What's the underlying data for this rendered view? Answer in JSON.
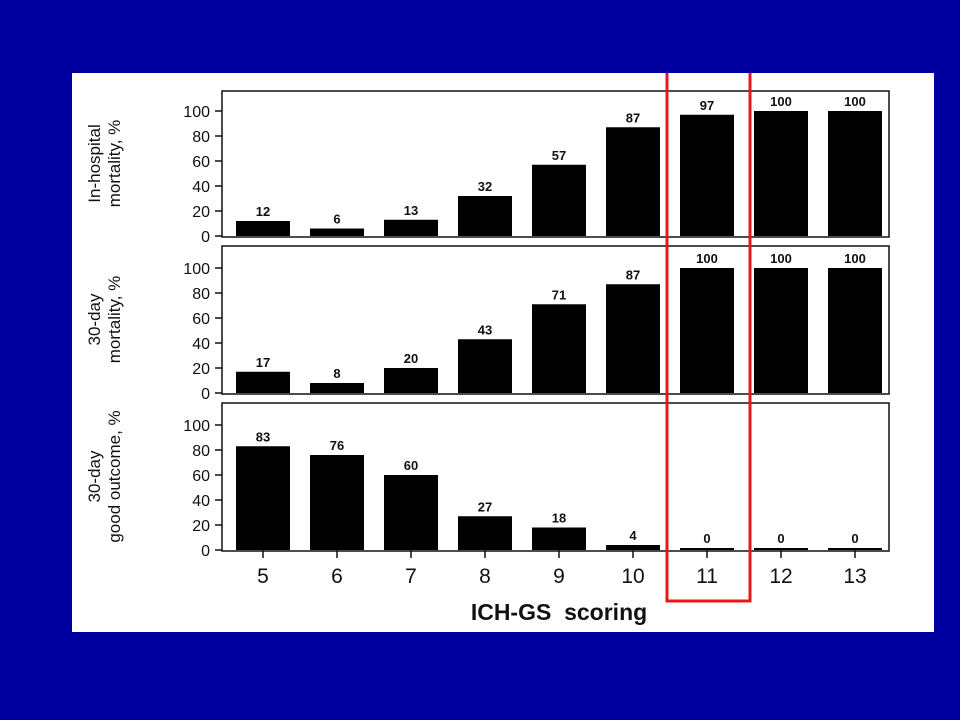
{
  "colors": {
    "background": "#0000a0",
    "figure_background": "#ffffff",
    "bars": "#000000",
    "highlight": "#e81818"
  },
  "chart_data": {
    "type": "bar",
    "categories": [
      "5",
      "6",
      "7",
      "8",
      "9",
      "10",
      "11",
      "12",
      "13"
    ],
    "xlabel": "ICH-GS  scoring",
    "highlighted_category": "11",
    "ylim": [
      0,
      100
    ],
    "yticks": [
      "0",
      "20",
      "40",
      "60",
      "80",
      "100"
    ],
    "panels": [
      {
        "ylabel_lines": [
          "In-hospital",
          "mortality, %"
        ],
        "values": [
          12,
          6,
          13,
          32,
          57,
          87,
          97,
          100,
          100
        ]
      },
      {
        "ylabel_lines": [
          "30-day",
          "mortality, %"
        ],
        "values": [
          17,
          8,
          20,
          43,
          71,
          87,
          100,
          100,
          100
        ]
      },
      {
        "ylabel_lines": [
          "30-day",
          "good outcome, %"
        ],
        "values": [
          83,
          76,
          60,
          27,
          18,
          4,
          0,
          0,
          0
        ]
      }
    ]
  }
}
